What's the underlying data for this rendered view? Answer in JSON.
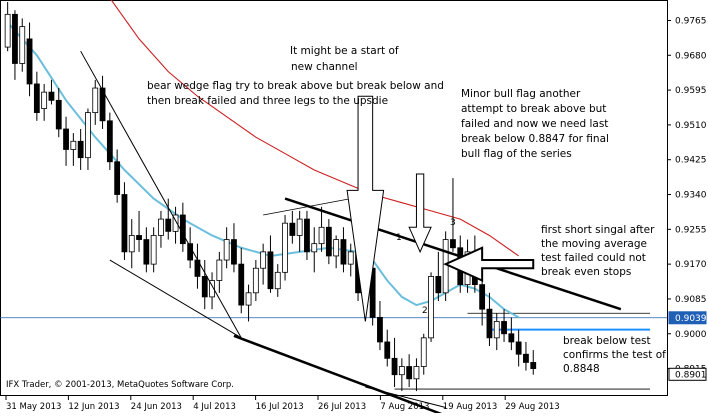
{
  "chart_data": {
    "type": "candlestick",
    "title": "",
    "xlabel": "",
    "ylabel": "",
    "ylim": [
      0.8848,
      0.9815
    ],
    "grid": false,
    "x_tick_labels": [
      "31 May 2013",
      "12 Jun 2013",
      "24 Jun 2013",
      "4 Jul 2013",
      "16 Jul 2013",
      "26 Jul 2013",
      "7 Aug 2013",
      "19 Aug 2013",
      "29 Aug 2013"
    ],
    "y_tick_labels": [
      "0.9765",
      "0.9680",
      "0.9595",
      "0.9510",
      "0.9425",
      "0.9340",
      "0.9255",
      "0.9170",
      "0.9085",
      "0.9000",
      "0.8915"
    ],
    "price_badges": [
      "0.9039",
      "0.8901"
    ],
    "copyright": "IFX Trader, © 2001-2013, MetaQuotes Software Corp.",
    "series": [
      {
        "name": "",
        "values": [
          [
            0.97,
            0.981,
            0.969,
            0.978
          ],
          [
            0.978,
            0.979,
            0.962,
            0.966
          ],
          [
            0.966,
            0.977,
            0.964,
            0.975
          ],
          [
            0.972,
            0.976,
            0.958,
            0.961
          ],
          [
            0.961,
            0.964,
            0.952,
            0.954
          ],
          [
            0.955,
            0.961,
            0.952,
            0.959
          ],
          [
            0.959,
            0.962,
            0.956,
            0.957
          ],
          [
            0.957,
            0.96,
            0.948,
            0.95
          ],
          [
            0.95,
            0.953,
            0.941,
            0.945
          ],
          [
            0.945,
            0.949,
            0.941,
            0.947
          ],
          [
            0.947,
            0.95,
            0.94,
            0.943
          ],
          [
            0.943,
            0.955,
            0.94,
            0.954
          ],
          [
            0.954,
            0.962,
            0.951,
            0.96
          ],
          [
            0.96,
            0.963,
            0.95,
            0.952
          ],
          [
            0.952,
            0.954,
            0.94,
            0.942
          ],
          [
            0.942,
            0.945,
            0.932,
            0.934
          ],
          [
            0.934,
            0.937,
            0.918,
            0.92
          ],
          [
            0.92,
            0.928,
            0.916,
            0.924
          ],
          [
            0.924,
            0.93,
            0.92,
            0.923
          ],
          [
            0.923,
            0.926,
            0.915,
            0.917
          ],
          [
            0.917,
            0.926,
            0.915,
            0.924
          ],
          [
            0.924,
            0.93,
            0.921,
            0.928
          ],
          [
            0.928,
            0.933,
            0.923,
            0.925
          ],
          [
            0.925,
            0.931,
            0.922,
            0.929
          ],
          [
            0.929,
            0.932,
            0.92,
            0.922
          ],
          [
            0.922,
            0.926,
            0.916,
            0.918
          ],
          [
            0.918,
            0.922,
            0.911,
            0.914
          ],
          [
            0.914,
            0.918,
            0.906,
            0.909
          ],
          [
            0.909,
            0.915,
            0.906,
            0.913
          ],
          [
            0.913,
            0.92,
            0.91,
            0.918
          ],
          [
            0.918,
            0.926,
            0.916,
            0.923
          ],
          [
            0.923,
            0.927,
            0.915,
            0.917
          ],
          [
            0.917,
            0.921,
            0.905,
            0.907
          ],
          [
            0.907,
            0.912,
            0.903,
            0.91
          ],
          [
            0.91,
            0.918,
            0.908,
            0.916
          ],
          [
            0.916,
            0.922,
            0.912,
            0.92
          ],
          [
            0.92,
            0.924,
            0.91,
            0.911
          ],
          [
            0.911,
            0.917,
            0.909,
            0.915
          ],
          [
            0.915,
            0.929,
            0.913,
            0.927
          ],
          [
            0.927,
            0.93,
            0.922,
            0.924
          ],
          [
            0.924,
            0.93,
            0.92,
            0.928
          ],
          [
            0.928,
            0.93,
            0.918,
            0.92
          ],
          [
            0.92,
            0.926,
            0.915,
            0.922
          ],
          [
            0.922,
            0.931,
            0.92,
            0.926
          ],
          [
            0.926,
            0.928,
            0.917,
            0.919
          ],
          [
            0.919,
            0.924,
            0.916,
            0.923
          ],
          [
            0.923,
            0.926,
            0.915,
            0.917
          ],
          [
            0.917,
            0.922,
            0.914,
            0.92
          ],
          [
            0.92,
            0.923,
            0.908,
            0.91
          ],
          [
            0.91,
            0.918,
            0.908,
            0.916
          ],
          [
            0.916,
            0.919,
            0.902,
            0.904
          ],
          [
            0.904,
            0.908,
            0.896,
            0.898
          ],
          [
            0.898,
            0.901,
            0.892,
            0.894
          ],
          [
            0.894,
            0.899,
            0.887,
            0.89
          ],
          [
            0.89,
            0.894,
            0.886,
            0.892
          ],
          [
            0.892,
            0.895,
            0.887,
            0.889
          ],
          [
            0.889,
            0.894,
            0.886,
            0.892
          ],
          [
            0.892,
            0.9,
            0.89,
            0.899
          ],
          [
            0.899,
            0.915,
            0.898,
            0.914
          ],
          [
            0.914,
            0.92,
            0.908,
            0.91
          ],
          [
            0.91,
            0.925,
            0.908,
            0.923
          ],
          [
            0.923,
            0.938,
            0.92,
            0.921
          ],
          [
            0.921,
            0.924,
            0.91,
            0.912
          ],
          [
            0.912,
            0.923,
            0.91,
            0.92
          ],
          [
            0.92,
            0.924,
            0.91,
            0.912
          ],
          [
            0.912,
            0.918,
            0.902,
            0.906
          ],
          [
            0.906,
            0.91,
            0.897,
            0.899
          ],
          [
            0.899,
            0.905,
            0.896,
            0.903
          ],
          [
            0.903,
            0.906,
            0.898,
            0.9
          ],
          [
            0.9,
            0.904,
            0.896,
            0.898
          ],
          [
            0.898,
            0.901,
            0.892,
            0.895
          ],
          [
            0.895,
            0.898,
            0.891,
            0.893
          ],
          [
            0.893,
            0.896,
            0.89,
            0.8915
          ]
        ]
      }
    ],
    "moving_averages": [
      {
        "name": "",
        "color": "#6bbfdc",
        "points": [
          [
            0,
            0.976
          ],
          [
            4,
            0.968
          ],
          [
            8,
            0.957
          ],
          [
            12,
            0.948
          ],
          [
            16,
            0.94
          ],
          [
            20,
            0.933
          ],
          [
            24,
            0.928
          ],
          [
            28,
            0.924
          ],
          [
            32,
            0.921
          ],
          [
            36,
            0.919
          ],
          [
            40,
            0.92
          ],
          [
            44,
            0.921
          ],
          [
            48,
            0.92
          ],
          [
            50,
            0.918
          ],
          [
            52,
            0.913
          ],
          [
            54,
            0.909
          ],
          [
            56,
            0.907
          ],
          [
            58,
            0.908
          ],
          [
            60,
            0.91
          ],
          [
            62,
            0.912
          ],
          [
            64,
            0.911
          ],
          [
            66,
            0.909
          ],
          [
            68,
            0.906
          ],
          [
            70,
            0.904
          ]
        ]
      },
      {
        "name": "",
        "color": "#cc1f1f",
        "points": [
          [
            14,
            0.982
          ],
          [
            18,
            0.972
          ],
          [
            22,
            0.964
          ],
          [
            26,
            0.958
          ],
          [
            30,
            0.953
          ],
          [
            34,
            0.948
          ],
          [
            38,
            0.944
          ],
          [
            42,
            0.94
          ],
          [
            46,
            0.937
          ],
          [
            50,
            0.934
          ],
          [
            54,
            0.932
          ],
          [
            58,
            0.93
          ],
          [
            62,
            0.928
          ],
          [
            66,
            0.924
          ],
          [
            70,
            0.919
          ]
        ]
      }
    ],
    "horizontal_lines": [
      {
        "value": 0.9039,
        "color": "#1f5fb5",
        "width": 0.7
      },
      {
        "value": 0.901,
        "color": "#1e90ff",
        "width": 2,
        "from": 66,
        "to": 88
      },
      {
        "value": 0.905,
        "color": "#000000",
        "width": 0.8,
        "from": 63,
        "to": 88
      },
      {
        "value": 0.8865,
        "color": "#000000",
        "width": 0.8,
        "from": 53,
        "to": 88
      }
    ],
    "annotations": [
      "It might be a start of",
      "new channel",
      "bear wedge flag try to break above but break below and",
      "then break failed and three legs to the upsdie",
      "Minor bull flag another",
      "attempt to break above but",
      "failed and now we need last",
      "break below 0.8847 for final",
      "bull flag of the series",
      "first short singal after",
      "the moving average",
      "test failed could not",
      "break even stops",
      "break below test",
      "confirms the test of",
      "0.8848",
      "1",
      "2",
      "3"
    ]
  }
}
